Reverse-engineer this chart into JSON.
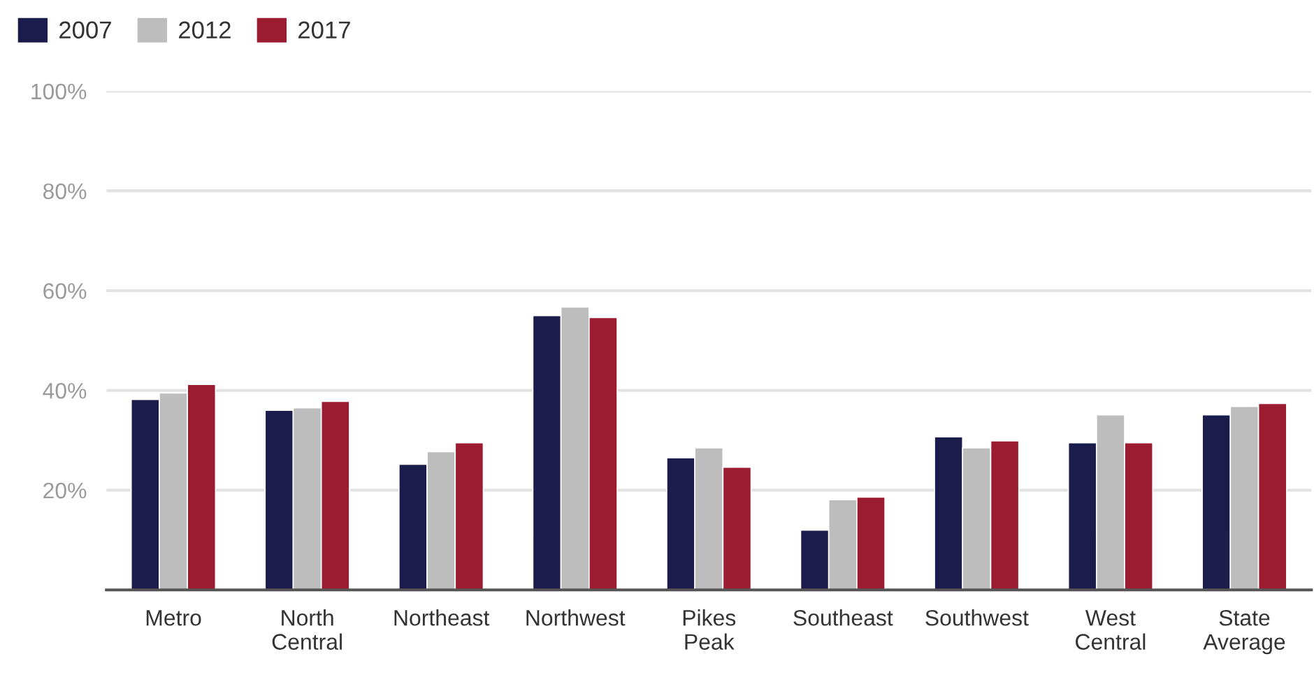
{
  "chart_data": {
    "type": "bar",
    "categories": [
      "Metro",
      "North Central",
      "Northeast",
      "Northwest",
      "Pikes Peak",
      "Southeast",
      "Southwest",
      "West Central",
      "State Average"
    ],
    "series": [
      {
        "name": "2007",
        "color": "#1c1c4c",
        "values": [
          38.2,
          36.0,
          25.2,
          55.0,
          26.5,
          12.0,
          30.7,
          29.5,
          35.1
        ]
      },
      {
        "name": "2012",
        "color": "#bdbdbd",
        "values": [
          39.5,
          36.5,
          27.7,
          56.7,
          28.5,
          18.1,
          28.5,
          35.1,
          36.8
        ]
      },
      {
        "name": "2017",
        "color": "#9b1b30",
        "values": [
          41.2,
          37.8,
          29.5,
          54.6,
          24.6,
          18.6,
          29.9,
          29.5,
          37.4
        ]
      }
    ],
    "ylim": [
      0,
      100
    ],
    "yticks": [
      {
        "value": 20,
        "label": "20%"
      },
      {
        "value": 40,
        "label": "40%"
      },
      {
        "value": 60,
        "label": "60%"
      },
      {
        "value": 80,
        "label": "80%"
      },
      {
        "value": 100,
        "label": "100%"
      }
    ],
    "grid": "y",
    "legend": "top left"
  }
}
